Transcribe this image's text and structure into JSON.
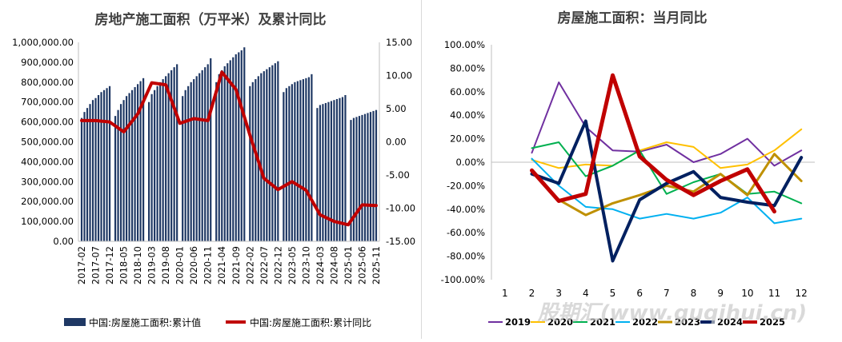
{
  "watermark": "股期汇(www.guqihui.cn)",
  "chart_data": [
    {
      "type": "bar+line",
      "title": "房地产施工面积（万平米）及累计同比",
      "left_axis": {
        "ylim": [
          0,
          1000000
        ],
        "ticks": [
          "0.00",
          "100,000.00",
          "200,000.00",
          "300,000.00",
          "400,000.00",
          "500,000.00",
          "600,000.00",
          "700,000.00",
          "800,000.00",
          "900,000.00",
          "1,000,000.00"
        ]
      },
      "right_axis": {
        "ylim": [
          -15,
          15
        ],
        "ticks": [
          "-15.00",
          "-10.00",
          "-5.00",
          "0.00",
          "5.00",
          "10.00",
          "15.00"
        ]
      },
      "x_tick_labels": [
        "2017-02",
        "2017-07",
        "2017-12",
        "2018-05",
        "2018-10",
        "2019-03",
        "2019-08",
        "2020-01",
        "2020-06",
        "2020-11",
        "2021-04",
        "2021-09",
        "2022-02",
        "2022-07",
        "2022-12",
        "2023-05",
        "2023-10",
        "2024-03",
        "2024-08",
        "2025-01",
        "2025-06",
        "2025-11"
      ],
      "grid": false,
      "legend_position": "bottom",
      "series": [
        {
          "name": "中国:房屋施工面积:累计值",
          "kind": "bar",
          "axis": "left",
          "color": "#1f3864",
          "x": [
            "2017-02",
            "2017-03",
            "2017-04",
            "2017-05",
            "2017-06",
            "2017-07",
            "2017-08",
            "2017-09",
            "2017-10",
            "2017-11",
            "2017-12",
            "2018-02",
            "2018-03",
            "2018-04",
            "2018-05",
            "2018-06",
            "2018-07",
            "2018-08",
            "2018-09",
            "2018-10",
            "2018-11",
            "2018-12",
            "2019-02",
            "2019-03",
            "2019-04",
            "2019-05",
            "2019-06",
            "2019-07",
            "2019-08",
            "2019-09",
            "2019-10",
            "2019-11",
            "2019-12",
            "2020-02",
            "2020-03",
            "2020-04",
            "2020-05",
            "2020-06",
            "2020-07",
            "2020-08",
            "2020-09",
            "2020-10",
            "2020-11",
            "2020-12",
            "2021-02",
            "2021-03",
            "2021-04",
            "2021-05",
            "2021-06",
            "2021-07",
            "2021-08",
            "2021-09",
            "2021-10",
            "2021-11",
            "2021-12",
            "2022-02",
            "2022-03",
            "2022-04",
            "2022-05",
            "2022-06",
            "2022-07",
            "2022-08",
            "2022-09",
            "2022-10",
            "2022-11",
            "2022-12",
            "2023-02",
            "2023-03",
            "2023-04",
            "2023-05",
            "2023-06",
            "2023-07",
            "2023-08",
            "2023-09",
            "2023-10",
            "2023-11",
            "2023-12",
            "2024-02",
            "2024-03",
            "2024-04",
            "2024-05",
            "2024-06",
            "2024-07",
            "2024-08",
            "2024-09",
            "2024-10",
            "2024-11",
            "2024-12",
            "2025-02",
            "2025-03",
            "2025-04",
            "2025-05",
            "2025-06",
            "2025-07",
            "2025-08",
            "2025-09",
            "2025-10",
            "2025-11"
          ],
          "values": [
            620000,
            650000,
            670000,
            690000,
            710000,
            720000,
            735000,
            750000,
            760000,
            770000,
            780000,
            630000,
            660000,
            690000,
            710000,
            730000,
            745000,
            760000,
            775000,
            790000,
            805000,
            820000,
            700000,
            740000,
            760000,
            780000,
            800000,
            815000,
            830000,
            845000,
            860000,
            875000,
            890000,
            730000,
            760000,
            780000,
            800000,
            815000,
            830000,
            845000,
            860000,
            875000,
            890000,
            920000,
            800000,
            840000,
            860000,
            880000,
            895000,
            910000,
            925000,
            940000,
            950000,
            960000,
            975000,
            780000,
            800000,
            815000,
            830000,
            845000,
            855000,
            865000,
            875000,
            885000,
            895000,
            905000,
            750000,
            770000,
            780000,
            790000,
            800000,
            805000,
            810000,
            815000,
            820000,
            825000,
            840000,
            670000,
            685000,
            690000,
            695000,
            700000,
            705000,
            710000,
            715000,
            720000,
            725000,
            735000,
            610000,
            620000,
            625000,
            630000,
            635000,
            640000,
            645000,
            650000,
            655000,
            660000
          ]
        },
        {
          "name": "中国:房屋施工面积:累计同比",
          "kind": "line",
          "axis": "right",
          "color": "#c00000",
          "x": [
            "2017-02",
            "2017-07",
            "2017-12",
            "2018-05",
            "2018-10",
            "2019-03",
            "2019-08",
            "2020-01",
            "2020-06",
            "2020-11",
            "2021-04",
            "2021-09",
            "2022-02",
            "2022-07",
            "2022-12",
            "2023-05",
            "2023-10",
            "2024-03",
            "2024-08",
            "2025-01",
            "2025-06",
            "2025-11"
          ],
          "values": [
            3.2,
            3.2,
            3.0,
            1.5,
            4.2,
            8.9,
            8.6,
            2.8,
            3.5,
            3.2,
            10.5,
            7.9,
            1.0,
            -5.5,
            -7.2,
            -6.0,
            -7.3,
            -11.0,
            -12.0,
            -12.5,
            -9.5,
            -9.6
          ]
        }
      ]
    },
    {
      "type": "line",
      "title": "房屋施工面积：当月同比",
      "categories": [
        "1",
        "2",
        "3",
        "4",
        "5",
        "6",
        "7",
        "8",
        "9",
        "10",
        "11",
        "12"
      ],
      "ylim": [
        -100,
        100
      ],
      "y_ticks": [
        "-100.00%",
        "-80.00%",
        "-60.00%",
        "-40.00%",
        "-20.00%",
        "0.00%",
        "20.00%",
        "40.00%",
        "60.00%",
        "80.00%",
        "100.00%"
      ],
      "grid": false,
      "legend_position": "bottom",
      "series": [
        {
          "name": "2019",
          "color": "#7030a0",
          "width": 2,
          "values": [
            null,
            8,
            68,
            30,
            10,
            9,
            15,
            0,
            7,
            20,
            -3,
            10
          ]
        },
        {
          "name": "2020",
          "color": "#ffc000",
          "width": 2,
          "values": [
            null,
            2,
            -5,
            -2,
            -3,
            10,
            17,
            13,
            -5,
            -2,
            10,
            28
          ]
        },
        {
          "name": "2021",
          "color": "#00b050",
          "width": 2,
          "values": [
            null,
            12,
            17,
            -12,
            -3,
            10,
            -27,
            -17,
            -10,
            -27,
            -25,
            -35
          ]
        },
        {
          "name": "2022",
          "color": "#00b0f0",
          "width": 2,
          "values": [
            null,
            3,
            -20,
            -38,
            -40,
            -48,
            -44,
            -48,
            -43,
            -30,
            -52,
            -48
          ]
        },
        {
          "name": "2023",
          "color": "#bf9000",
          "width": 3,
          "values": [
            null,
            -8,
            -32,
            -45,
            -35,
            -28,
            -20,
            -25,
            -10,
            -28,
            7,
            -16
          ]
        },
        {
          "name": "2024",
          "color": "#002060",
          "width": 4,
          "values": [
            null,
            -10,
            -18,
            35,
            -84,
            -32,
            -18,
            -8,
            -30,
            -34,
            -37,
            4
          ]
        },
        {
          "name": "2025",
          "color": "#c00000",
          "width": 5,
          "values": [
            null,
            -7,
            -33,
            -27,
            74,
            5,
            -15,
            -28,
            -16,
            -6,
            -42,
            null
          ]
        }
      ]
    }
  ]
}
